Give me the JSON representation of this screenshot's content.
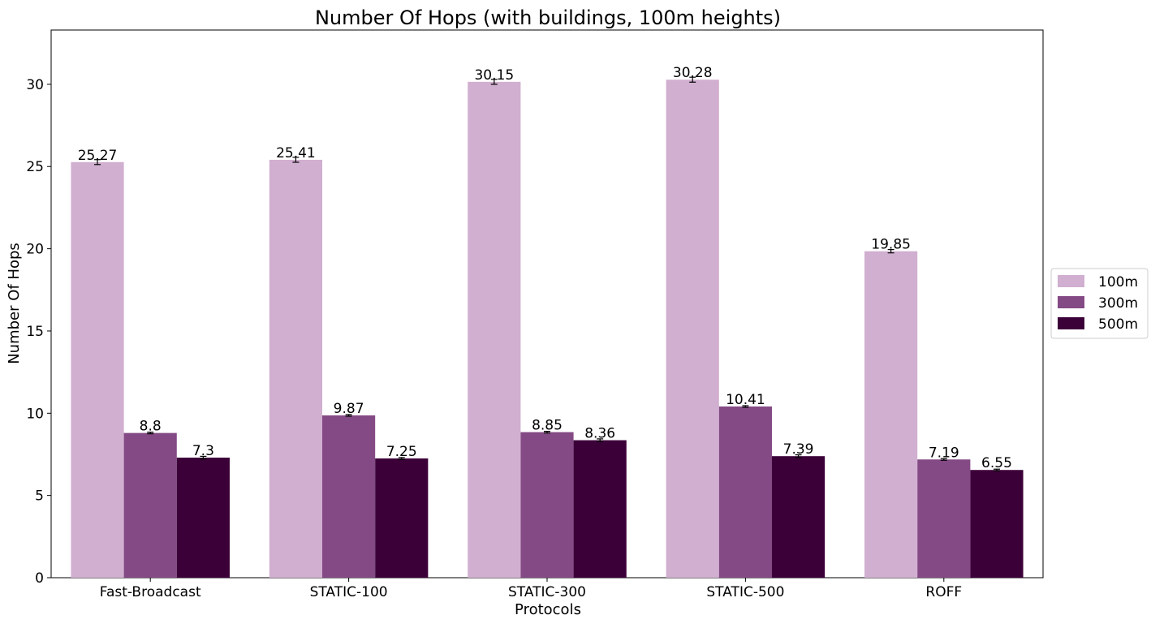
{
  "chart_data": {
    "type": "bar",
    "title": "Number Of Hops (with buildings, 100m heights)",
    "xlabel": "Protocols",
    "ylabel": "Number Of Hops",
    "categories": [
      "Fast-Broadcast",
      "STATIC-100",
      "STATIC-300",
      "STATIC-500",
      "ROFF"
    ],
    "series": [
      {
        "name": "100m",
        "color": "#d1afd0",
        "values": [
          25.27,
          25.41,
          30.15,
          30.28,
          19.85
        ],
        "labels": [
          "25.27",
          "25.41",
          "30.15",
          "30.28",
          "19.85"
        ],
        "errors": [
          0.15,
          0.15,
          0.15,
          0.15,
          0.1
        ]
      },
      {
        "name": "300m",
        "color": "#844a85",
        "values": [
          8.8,
          9.87,
          8.85,
          10.41,
          7.19
        ],
        "labels": [
          "8.8",
          "9.87",
          "8.85",
          "10.41",
          "7.19"
        ],
        "errors": [
          0.05,
          0.05,
          0.05,
          0.05,
          0.05
        ]
      },
      {
        "name": "500m",
        "color": "#3c0039",
        "values": [
          7.3,
          7.25,
          8.36,
          7.39,
          6.55
        ],
        "labels": [
          "7.3",
          "7.25",
          "8.36",
          "7.39",
          "6.55"
        ],
        "errors": [
          0.08,
          0.06,
          0.08,
          0.08,
          0.05
        ]
      }
    ],
    "ylim": [
      0,
      33.3
    ],
    "yticks": [
      "0",
      "5",
      "10",
      "15",
      "20",
      "25",
      "30"
    ],
    "grid": false,
    "legend_position": "right"
  }
}
